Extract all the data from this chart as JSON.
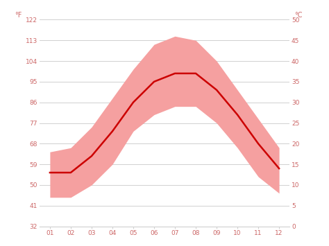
{
  "months": [
    1,
    2,
    3,
    4,
    5,
    6,
    7,
    8,
    9,
    10,
    11,
    12
  ],
  "month_labels": [
    "01",
    "02",
    "03",
    "04",
    "05",
    "06",
    "07",
    "08",
    "09",
    "10",
    "11",
    "12"
  ],
  "avg_temp_c": [
    13,
    13,
    17,
    23,
    30,
    35,
    37,
    37,
    33,
    27,
    20,
    14
  ],
  "max_temp_c": [
    18,
    19,
    24,
    31,
    38,
    44,
    46,
    45,
    40,
    33,
    26,
    19
  ],
  "min_temp_c": [
    7,
    7,
    10,
    15,
    23,
    27,
    29,
    29,
    25,
    19,
    12,
    8
  ],
  "ylim_c": [
    0,
    50
  ],
  "yticks_c": [
    0,
    5,
    10,
    15,
    20,
    25,
    30,
    35,
    40,
    45,
    50
  ],
  "ytick_labels_f": [
    "32",
    "41",
    "50",
    "59",
    "68",
    "77",
    "86",
    "95",
    "104",
    "113",
    "122"
  ],
  "ytick_labels_c": [
    "0",
    "5",
    "10",
    "15",
    "20",
    "25",
    "30",
    "35",
    "40",
    "45",
    "50"
  ],
  "line_color": "#cc0000",
  "band_color": "#f5a0a0",
  "grid_color": "#d0d0d0",
  "background_color": "#ffffff",
  "tick_color": "#cc6666",
  "label_f": "°F",
  "label_c": "°C",
  "figsize": [
    4.74,
    3.55
  ],
  "dpi": 100
}
